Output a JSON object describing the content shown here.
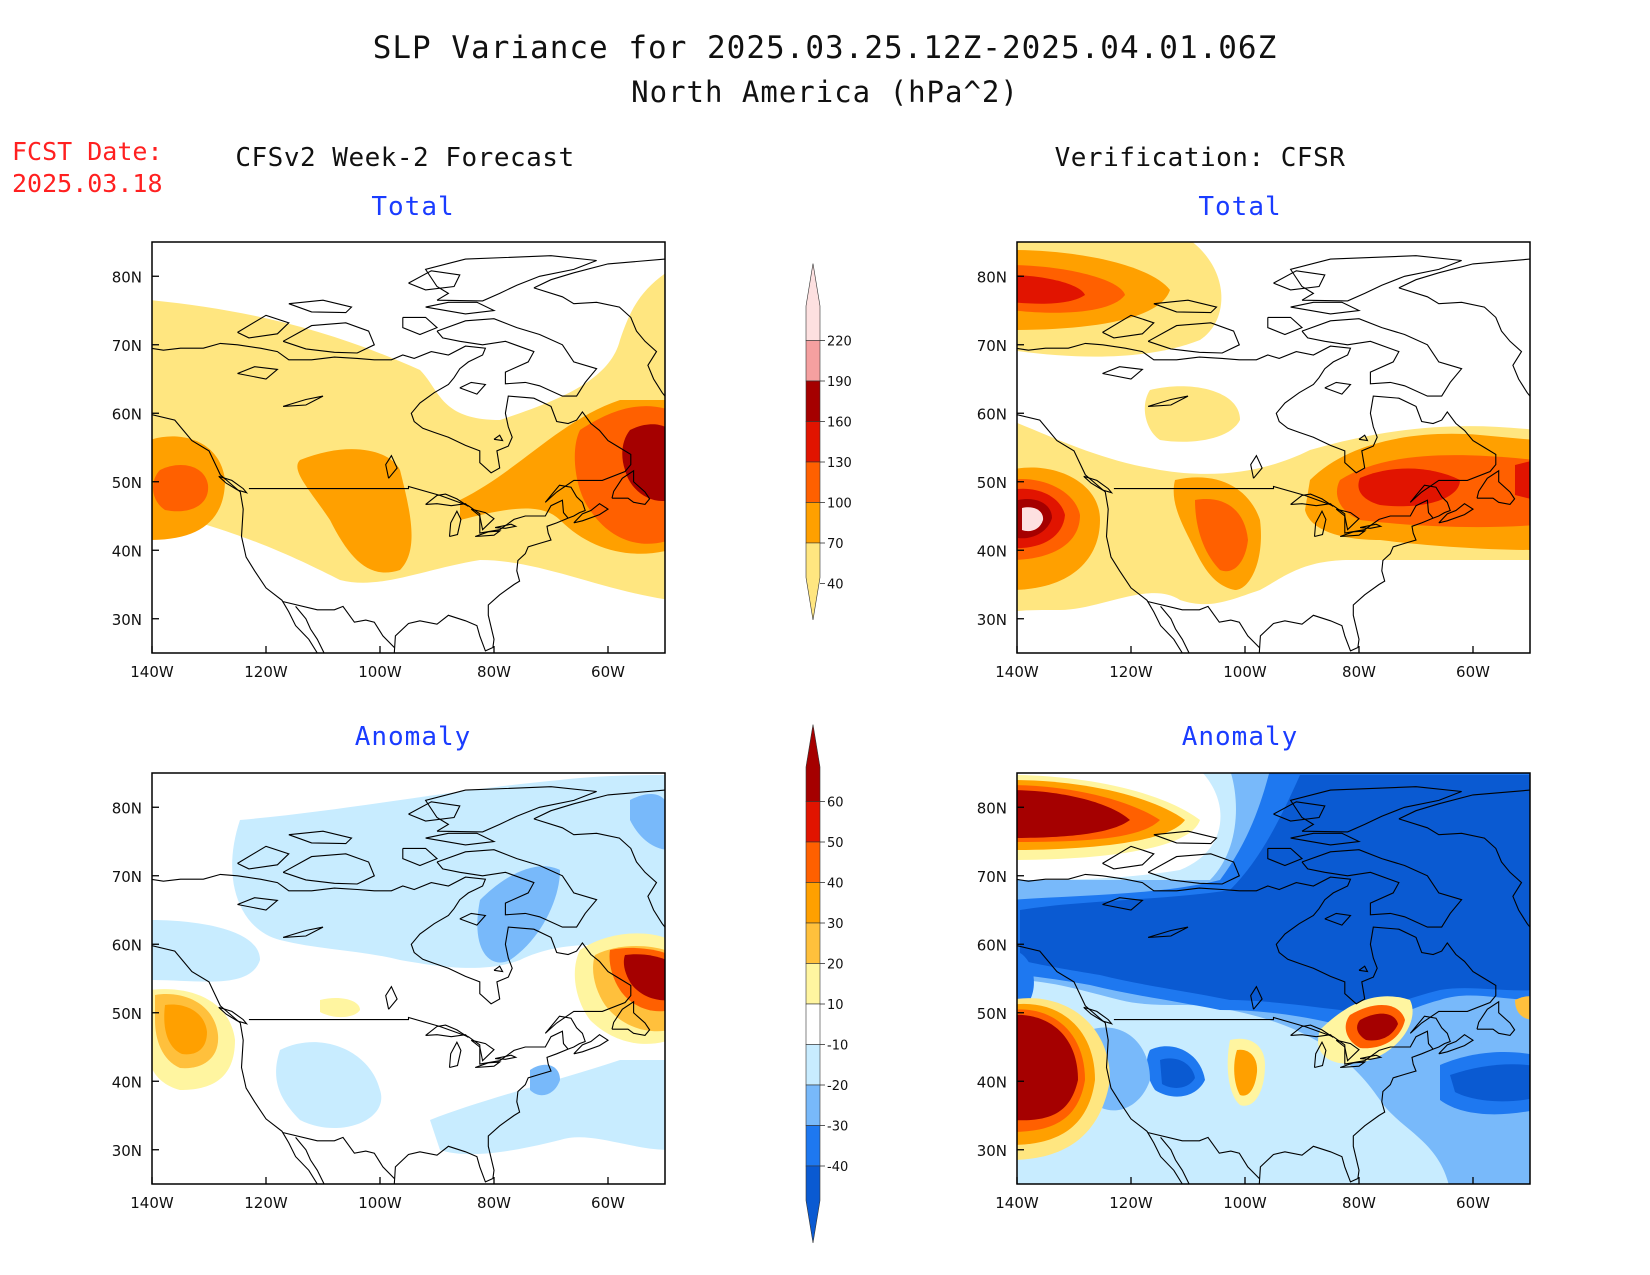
{
  "header": {
    "title_line1": "SLP Variance for 2025.03.25.12Z-2025.04.01.06Z",
    "title_line2": "North America (hPa^2)",
    "fcst_label": "FCST Date:",
    "fcst_date": "2025.03.18"
  },
  "columns": {
    "left": "CFSv2 Week-2 Forecast",
    "right": "Verification: CFSR"
  },
  "panels": [
    {
      "id": "fcst-total",
      "title": "Total"
    },
    {
      "id": "verif-total",
      "title": "Total"
    },
    {
      "id": "fcst-anomaly",
      "title": "Anomaly"
    },
    {
      "id": "verif-anomaly",
      "title": "Anomaly"
    }
  ],
  "axes": {
    "lon_labels": [
      "140W",
      "120W",
      "100W",
      "80W",
      "60W"
    ],
    "lon_values": [
      -140,
      -120,
      -100,
      -80,
      -60
    ],
    "lat_labels": [
      "80N",
      "70N",
      "60N",
      "50N",
      "40N",
      "30N"
    ],
    "lat_values": [
      80,
      70,
      60,
      50,
      40,
      30
    ],
    "lon_range": [
      -140,
      -50
    ],
    "lat_range": [
      25,
      85
    ]
  },
  "colorbars": {
    "total": {
      "labels": [
        "40",
        "70",
        "100",
        "130",
        "160",
        "190",
        "220"
      ],
      "colors": [
        "#ffe680",
        "#ffa000",
        "#ff6000",
        "#e11400",
        "#a50000",
        "#f5a0a0",
        "#fde0e0"
      ]
    },
    "anomaly": {
      "labels": [
        "-40",
        "-30",
        "-20",
        "-10",
        "10",
        "20",
        "30",
        "40",
        "50",
        "60"
      ],
      "colors": [
        "#0a5ad2",
        "#1e78f0",
        "#78b9fa",
        "#c8ecff",
        "#ffffff",
        "#fff5a0",
        "#ffc03c",
        "#ffa000",
        "#ff6000",
        "#e11400",
        "#a50000"
      ]
    }
  }
}
